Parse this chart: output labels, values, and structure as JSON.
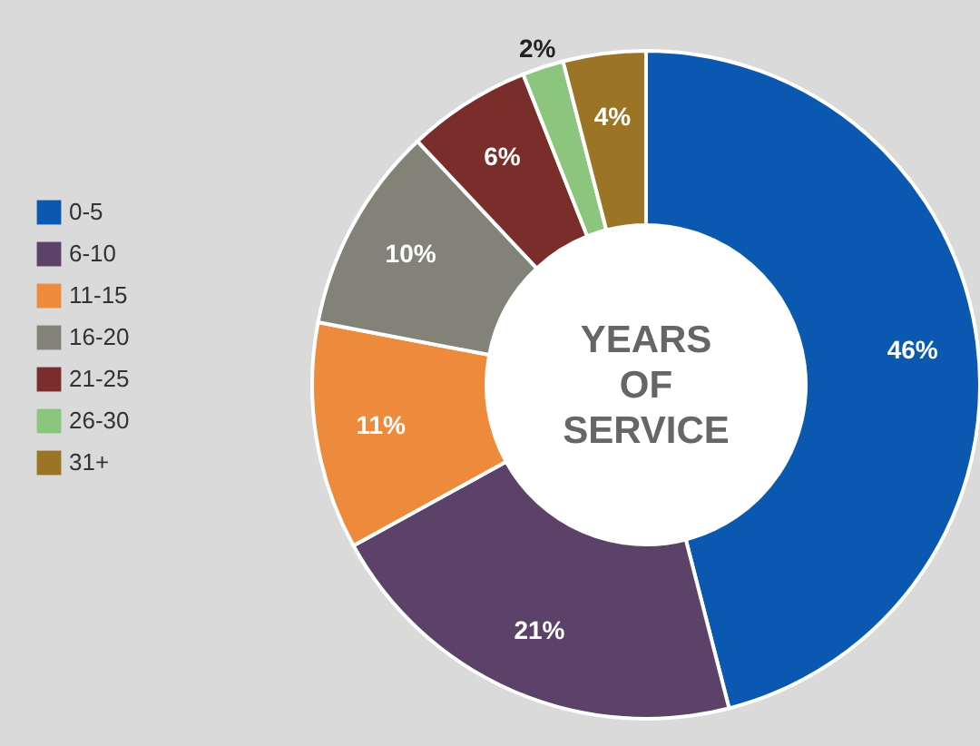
{
  "chart_data": {
    "type": "donut",
    "title": "YEARS OF SERVICE",
    "categories": [
      "0-5",
      "6-10",
      "11-15",
      "16-20",
      "21-25",
      "26-30",
      "31+"
    ],
    "values": [
      46,
      21,
      11,
      10,
      6,
      2,
      4
    ],
    "colors": [
      "#0a58b0",
      "#5c4168",
      "#ee8a3c",
      "#828278",
      "#7a2e2c",
      "#8cc67e",
      "#9c7426"
    ],
    "value_labels": [
      "46%",
      "21%",
      "11%",
      "10%",
      "6%",
      "2%",
      "4%"
    ],
    "legend": "left"
  }
}
